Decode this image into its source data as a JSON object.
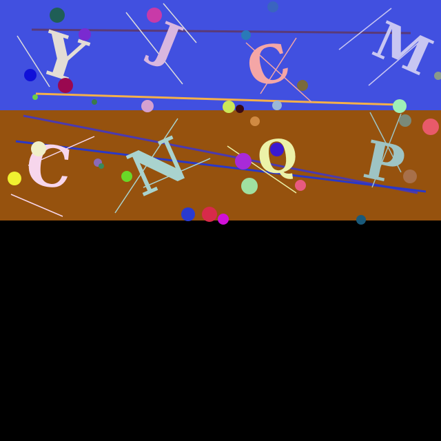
{
  "colors": {
    "top_band": "#4150e0",
    "middle_band": "#96520e",
    "bottom_band": "#000000"
  },
  "glyphs": [
    {
      "char": "Y",
      "color": "#e3ddd5"
    },
    {
      "char": "J",
      "color": "#d9b7df"
    },
    {
      "char": "C",
      "color": "#f4a6a6"
    },
    {
      "char": "M",
      "color": "#c8c6f2"
    },
    {
      "char": "C",
      "color": "#f7d6ec"
    },
    {
      "char": "N",
      "color": "#a9d3ce"
    },
    {
      "char": "Q",
      "color": "#ecf2a8"
    },
    {
      "char": "P",
      "color": "#9ec4c4"
    }
  ]
}
